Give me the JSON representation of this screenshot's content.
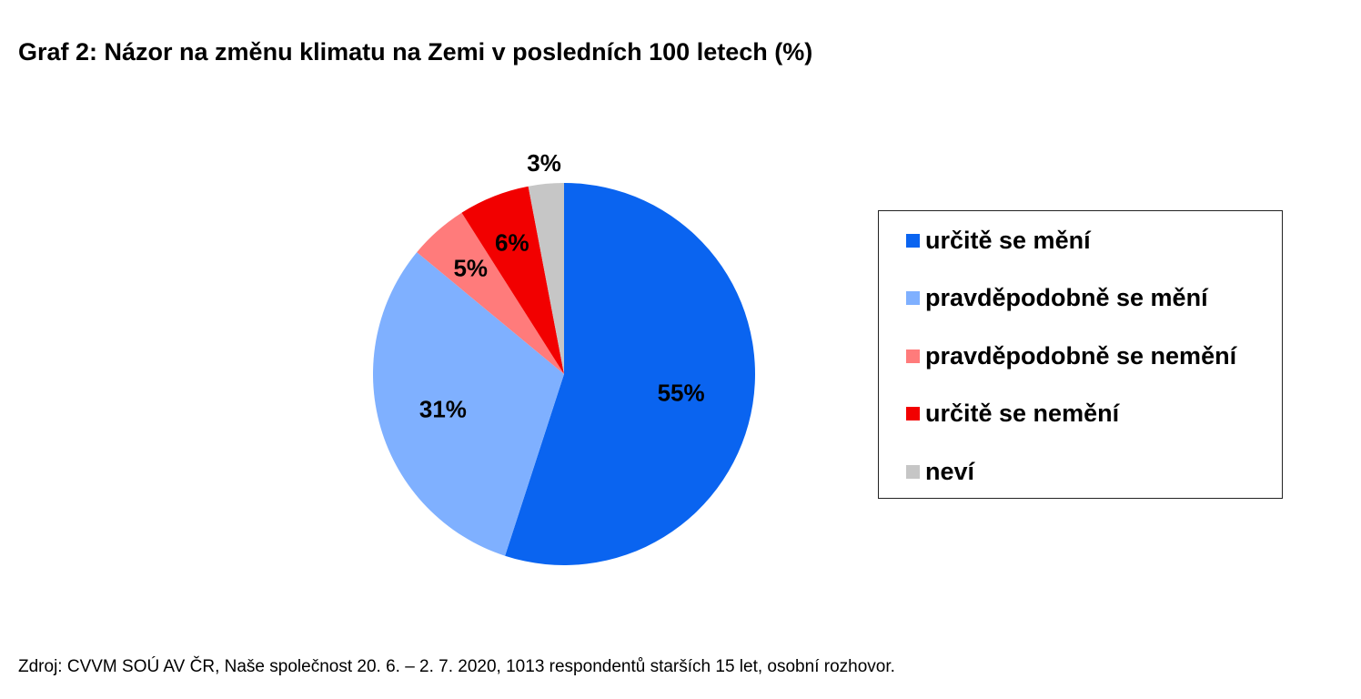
{
  "chart_data": {
    "type": "pie",
    "title": "Graf 2: Názor na změnu klimatu na Zemi v posledních 100 letech (%)",
    "legend_position": "right",
    "slices": [
      {
        "label": "určitě se mění",
        "value": 55,
        "value_label": "55%",
        "color": "#0A64F0"
      },
      {
        "label": "pravděpodobně se mění",
        "value": 31,
        "value_label": "31%",
        "color": "#7FB0FF"
      },
      {
        "label": "pravděpodobně se nemění",
        "value": 5,
        "value_label": "5%",
        "color": "#FF7B7B"
      },
      {
        "label": "určitě se nemění",
        "value": 6,
        "value_label": "6%",
        "color": "#F20000"
      },
      {
        "label": "neví",
        "value": 3,
        "value_label": "3%",
        "color": "#C6C6C6"
      }
    ]
  },
  "source": "Zdroj: CVVM SOÚ AV ČR, Naše společnost 20. 6. – 2. 7. 2020, 1013 respondentů starších 15 let, osobní rozhovor."
}
